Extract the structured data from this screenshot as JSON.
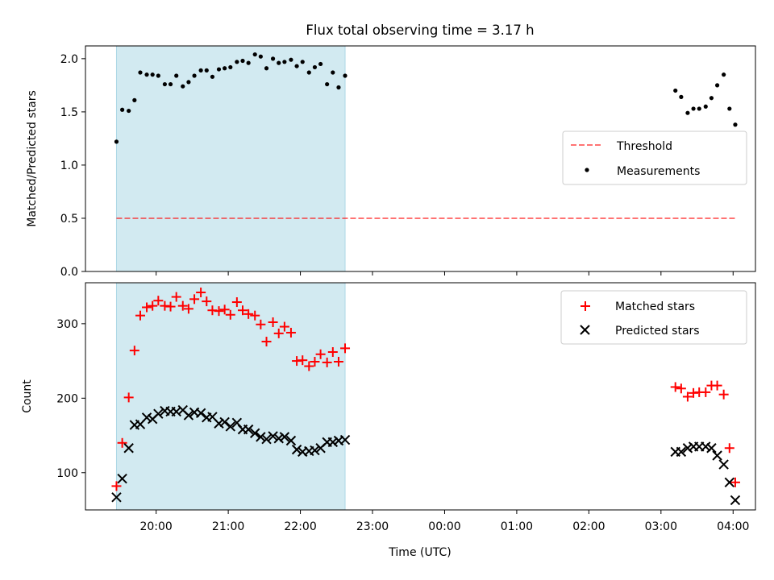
{
  "title": "Flux total observing time = 3.17 h",
  "colors": {
    "shade": "#add8e6",
    "threshold": "#ff0000",
    "measurements": "#000000",
    "matched": "#ff0000",
    "predicted": "#000000"
  },
  "chart_data": [
    {
      "type": "scatter",
      "panel": "top",
      "ylabel": "Matched/Predicted stars",
      "ylim": [
        0.0,
        2.12
      ],
      "yticks": [
        {
          "value": 0.0,
          "label": "0.0"
        },
        {
          "value": 0.5,
          "label": "0.5"
        },
        {
          "value": 1.0,
          "label": "1.0"
        },
        {
          "value": 1.5,
          "label": "1.5"
        },
        {
          "value": 2.0,
          "label": "2.0"
        }
      ],
      "x_axis": "time (UTC, hours past 20:00)",
      "xlim": [
        -0.98,
        8.31
      ],
      "shaded_span": [
        -0.55,
        2.62
      ],
      "legend_position": "center-right",
      "threshold": {
        "name": "Threshold",
        "value": 0.5,
        "x_range": [
          -0.55,
          8.05
        ],
        "style": "dashed"
      },
      "series": [
        {
          "name": "Measurements",
          "marker": "dot",
          "points": [
            [
              -0.55,
              1.22
            ],
            [
              -0.47,
              1.52
            ],
            [
              -0.38,
              1.51
            ],
            [
              -0.3,
              1.61
            ],
            [
              -0.22,
              1.87
            ],
            [
              -0.13,
              1.85
            ],
            [
              -0.05,
              1.85
            ],
            [
              0.03,
              1.84
            ],
            [
              0.12,
              1.76
            ],
            [
              0.2,
              1.76
            ],
            [
              0.28,
              1.84
            ],
            [
              0.37,
              1.74
            ],
            [
              0.45,
              1.78
            ],
            [
              0.53,
              1.84
            ],
            [
              0.62,
              1.89
            ],
            [
              0.7,
              1.89
            ],
            [
              0.78,
              1.83
            ],
            [
              0.87,
              1.9
            ],
            [
              0.95,
              1.91
            ],
            [
              1.03,
              1.92
            ],
            [
              1.12,
              1.97
            ],
            [
              1.2,
              1.98
            ],
            [
              1.28,
              1.96
            ],
            [
              1.37,
              2.04
            ],
            [
              1.45,
              2.02
            ],
            [
              1.53,
              1.91
            ],
            [
              1.62,
              2.0
            ],
            [
              1.7,
              1.96
            ],
            [
              1.78,
              1.97
            ],
            [
              1.87,
              1.99
            ],
            [
              1.95,
              1.93
            ],
            [
              2.03,
              1.97
            ],
            [
              2.12,
              1.87
            ],
            [
              2.2,
              1.92
            ],
            [
              2.28,
              1.95
            ],
            [
              2.37,
              1.76
            ],
            [
              2.45,
              1.87
            ],
            [
              2.53,
              1.73
            ],
            [
              2.62,
              1.84
            ],
            [
              7.2,
              1.7
            ],
            [
              7.28,
              1.64
            ],
            [
              7.37,
              1.49
            ],
            [
              7.45,
              1.53
            ],
            [
              7.53,
              1.53
            ],
            [
              7.62,
              1.55
            ],
            [
              7.7,
              1.63
            ],
            [
              7.78,
              1.75
            ],
            [
              7.87,
              1.85
            ],
            [
              7.95,
              1.53
            ],
            [
              8.03,
              1.38
            ]
          ]
        }
      ]
    },
    {
      "type": "scatter",
      "panel": "bottom",
      "ylabel": "Count",
      "xlabel": "Time (UTC)",
      "ylim": [
        50,
        355
      ],
      "yticks": [
        {
          "value": 100,
          "label": "100"
        },
        {
          "value": 200,
          "label": "200"
        },
        {
          "value": 300,
          "label": "300"
        }
      ],
      "xlim": [
        -0.98,
        8.31
      ],
      "xticks": [
        {
          "value": 0,
          "label": "20:00"
        },
        {
          "value": 1,
          "label": "21:00"
        },
        {
          "value": 2,
          "label": "22:00"
        },
        {
          "value": 3,
          "label": "23:00"
        },
        {
          "value": 4,
          "label": "00:00"
        },
        {
          "value": 5,
          "label": "01:00"
        },
        {
          "value": 6,
          "label": "02:00"
        },
        {
          "value": 7,
          "label": "03:00"
        },
        {
          "value": 8,
          "label": "04:00"
        }
      ],
      "shaded_span": [
        -0.55,
        2.62
      ],
      "legend_position": "top-right",
      "series": [
        {
          "name": "Matched stars",
          "marker": "plus",
          "points": [
            [
              -0.55,
              82
            ],
            [
              -0.47,
              140
            ],
            [
              -0.38,
              201
            ],
            [
              -0.3,
              264
            ],
            [
              -0.22,
              311
            ],
            [
              -0.13,
              322
            ],
            [
              -0.05,
              324
            ],
            [
              0.03,
              331
            ],
            [
              0.12,
              324
            ],
            [
              0.2,
              323
            ],
            [
              0.28,
              336
            ],
            [
              0.37,
              324
            ],
            [
              0.45,
              320
            ],
            [
              0.53,
              333
            ],
            [
              0.62,
              342
            ],
            [
              0.7,
              330
            ],
            [
              0.78,
              318
            ],
            [
              0.87,
              317
            ],
            [
              0.95,
              319
            ],
            [
              1.03,
              312
            ],
            [
              1.12,
              329
            ],
            [
              1.2,
              318
            ],
            [
              1.28,
              313
            ],
            [
              1.37,
              311
            ],
            [
              1.45,
              299
            ],
            [
              1.53,
              276
            ],
            [
              1.62,
              302
            ],
            [
              1.7,
              287
            ],
            [
              1.78,
              296
            ],
            [
              1.87,
              288
            ],
            [
              1.95,
              250
            ],
            [
              2.03,
              251
            ],
            [
              2.12,
              243
            ],
            [
              2.2,
              249
            ],
            [
              2.28,
              259
            ],
            [
              2.37,
              248
            ],
            [
              2.45,
              262
            ],
            [
              2.53,
              249
            ],
            [
              2.62,
              267
            ],
            [
              7.2,
              215
            ],
            [
              7.28,
              213
            ],
            [
              7.37,
              202
            ],
            [
              7.45,
              207
            ],
            [
              7.53,
              208
            ],
            [
              7.62,
              208
            ],
            [
              7.7,
              217
            ],
            [
              7.78,
              217
            ],
            [
              7.87,
              205
            ],
            [
              7.95,
              133
            ],
            [
              8.03,
              87
            ]
          ]
        },
        {
          "name": "Predicted stars",
          "marker": "x",
          "points": [
            [
              -0.55,
              67
            ],
            [
              -0.47,
              92
            ],
            [
              -0.38,
              133
            ],
            [
              -0.3,
              164
            ],
            [
              -0.22,
              165
            ],
            [
              -0.13,
              174
            ],
            [
              -0.05,
              172
            ],
            [
              0.03,
              179
            ],
            [
              0.12,
              183
            ],
            [
              0.2,
              182
            ],
            [
              0.28,
              182
            ],
            [
              0.37,
              184
            ],
            [
              0.45,
              177
            ],
            [
              0.53,
              181
            ],
            [
              0.62,
              180
            ],
            [
              0.7,
              174
            ],
            [
              0.78,
              175
            ],
            [
              0.87,
              166
            ],
            [
              0.95,
              168
            ],
            [
              1.03,
              162
            ],
            [
              1.12,
              167
            ],
            [
              1.2,
              158
            ],
            [
              1.28,
              158
            ],
            [
              1.37,
              153
            ],
            [
              1.45,
              148
            ],
            [
              1.53,
              145
            ],
            [
              1.62,
              149
            ],
            [
              1.7,
              146
            ],
            [
              1.78,
              148
            ],
            [
              1.87,
              143
            ],
            [
              1.95,
              131
            ],
            [
              2.03,
              128
            ],
            [
              2.12,
              129
            ],
            [
              2.2,
              130
            ],
            [
              2.28,
              133
            ],
            [
              2.37,
              141
            ],
            [
              2.45,
              141
            ],
            [
              2.53,
              143
            ],
            [
              2.62,
              144
            ],
            [
              7.2,
              128
            ],
            [
              7.28,
              128
            ],
            [
              7.37,
              133
            ],
            [
              7.45,
              135
            ],
            [
              7.53,
              135
            ],
            [
              7.62,
              135
            ],
            [
              7.7,
              133
            ],
            [
              7.78,
              123
            ],
            [
              7.87,
              111
            ],
            [
              7.95,
              87
            ],
            [
              8.03,
              63
            ]
          ]
        }
      ]
    }
  ]
}
